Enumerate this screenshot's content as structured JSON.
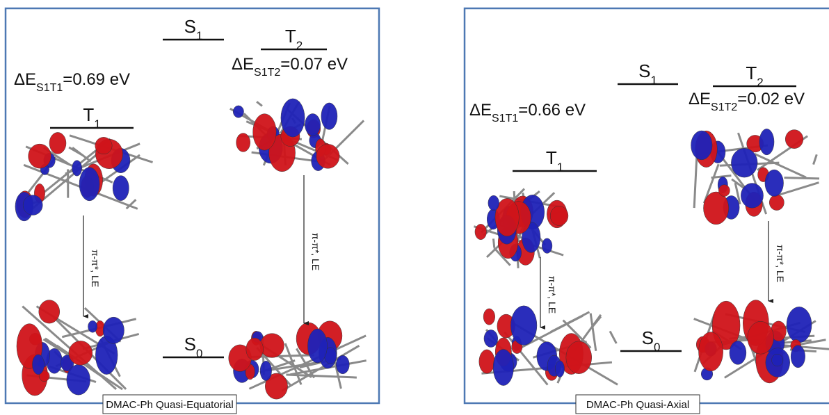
{
  "panels": [
    {
      "levels": [
        {
          "symbol": "S",
          "sub": "1"
        },
        {
          "symbol": "T",
          "sub": "2"
        },
        {
          "symbol": "T",
          "sub": "1"
        },
        {
          "symbol": "S",
          "sub": "0"
        }
      ],
      "gaps": [
        {
          "prefix": "ΔE",
          "sub": "S1T1",
          "suffix": "=0.69 eV"
        },
        {
          "prefix": "ΔE",
          "sub": "S1T2",
          "suffix": "=0.07 eV"
        }
      ],
      "transitions": [
        "π-π*, LE",
        "π-π*, LE"
      ],
      "caption": "DMAC-Ph Quasi-Equatorial"
    },
    {
      "levels": [
        {
          "symbol": "S",
          "sub": "1"
        },
        {
          "symbol": "T",
          "sub": "2"
        },
        {
          "symbol": "T",
          "sub": "1"
        },
        {
          "symbol": "S",
          "sub": "0"
        }
      ],
      "gaps": [
        {
          "prefix": "ΔE",
          "sub": "S1T1",
          "suffix": "=0.66 eV"
        },
        {
          "prefix": "ΔE",
          "sub": "S1T2",
          "suffix": "=0.02 eV"
        }
      ],
      "transitions": [
        "π-π*, LE",
        "π-π*, LE"
      ],
      "caption": "DMAC-Ph Quasi-Axial"
    }
  ]
}
